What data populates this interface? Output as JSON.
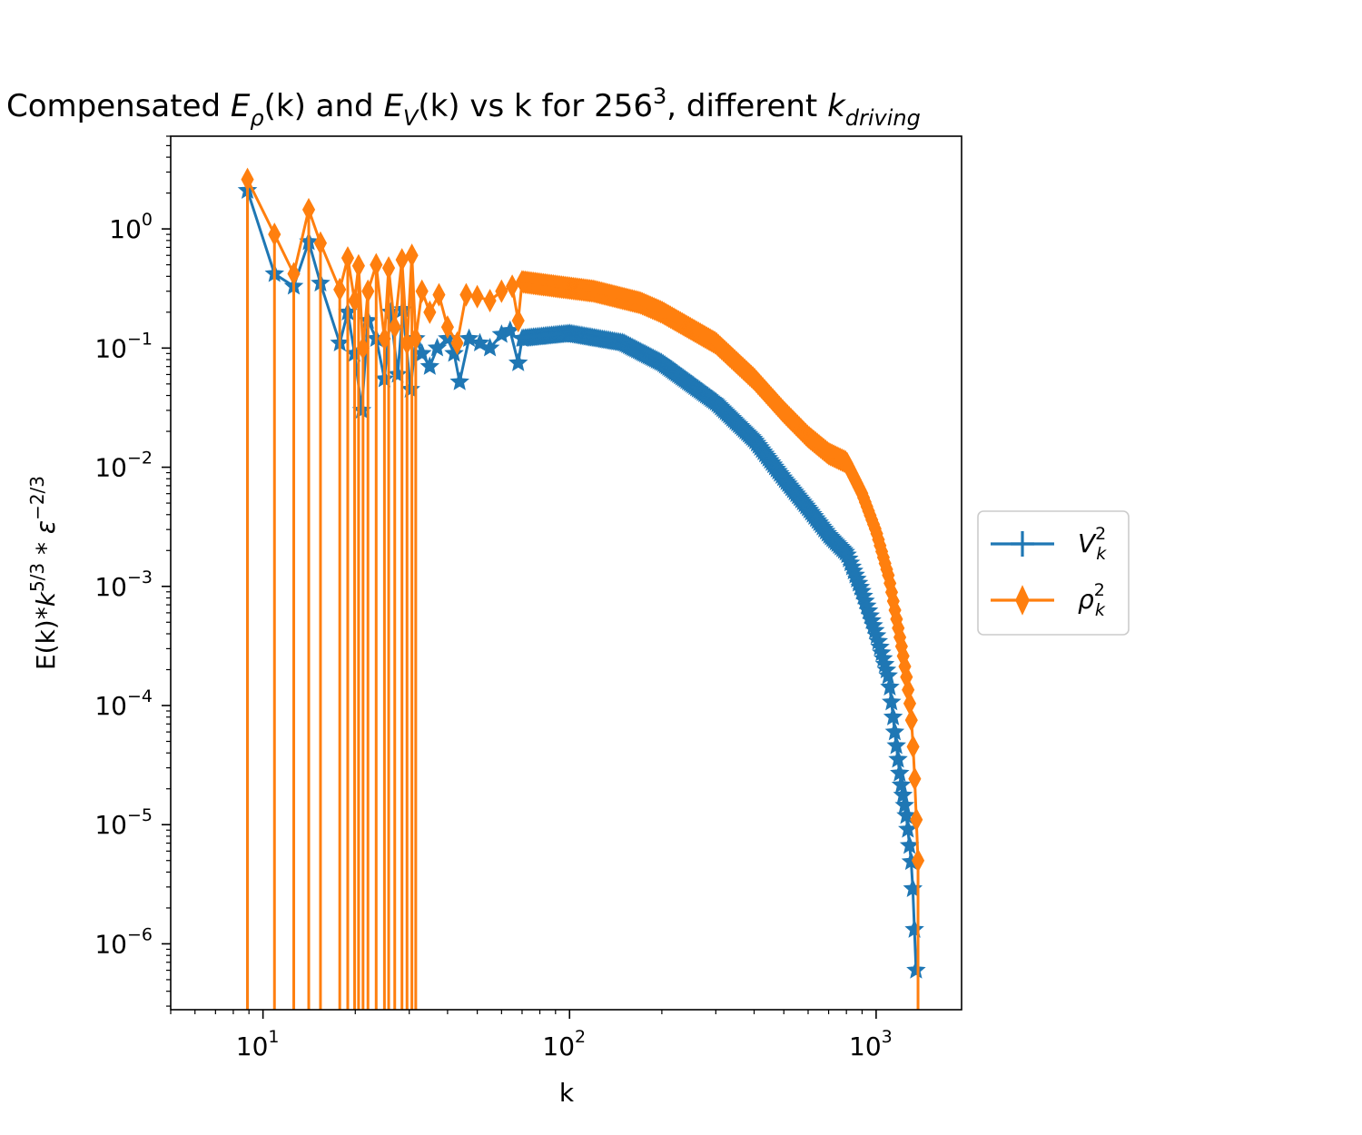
{
  "chart_data": {
    "type": "line",
    "title": {
      "prefix": "Compensated ",
      "e": "E",
      "rho": "ρ",
      "v": "V",
      "k_arg": "(k)",
      "k": "k",
      "and": " and ",
      "vs": " vs k for 256",
      "cube": "3",
      "different": ", different ",
      "driving": "driving"
    },
    "xlabel": "k",
    "ylabel": {
      "base": "E(k)*",
      "k": "k",
      "k_exp": "5/3",
      "star": " * ",
      "eps": "ε",
      "eps_exp": "−2/3"
    },
    "xscale": "log",
    "yscale": "log",
    "xlim": [
      5,
      1900
    ],
    "ylim": [
      2.8e-07,
      6
    ],
    "x_ticks": [
      {
        "base": "10",
        "exp": "1",
        "value": 10
      },
      {
        "base": "10",
        "exp": "2",
        "value": 100
      },
      {
        "base": "10",
        "exp": "3",
        "value": 1000
      }
    ],
    "y_ticks": [
      {
        "base": "10",
        "exp": "0",
        "value": 1
      },
      {
        "base": "10",
        "exp": "−1",
        "value": 0.1
      },
      {
        "base": "10",
        "exp": "−2",
        "value": 0.01
      },
      {
        "base": "10",
        "exp": "−3",
        "value": 0.001
      },
      {
        "base": "10",
        "exp": "−4",
        "value": 0.0001
      },
      {
        "base": "10",
        "exp": "−5",
        "value": 1e-05
      },
      {
        "base": "10",
        "exp": "−6",
        "value": 1e-06
      }
    ],
    "grid": false,
    "legend_position": "outside-right",
    "series": [
      {
        "name": "V",
        "name_sup": "2",
        "name_sub": "k",
        "color": "#1f77b4",
        "marker": "star",
        "sparse": [
          [
            8.9,
            2.1
          ],
          [
            10.9,
            0.42
          ],
          [
            12.6,
            0.33
          ],
          [
            14.1,
            0.78
          ],
          [
            15.4,
            0.35
          ],
          [
            17.8,
            0.11
          ],
          [
            18.9,
            0.2
          ],
          [
            19.9,
            0.09
          ],
          [
            21.0,
            0.03
          ],
          [
            22.0,
            0.17
          ],
          [
            23.4,
            0.12
          ],
          [
            24.9,
            0.055
          ],
          [
            26.1,
            0.2
          ],
          [
            27.5,
            0.06
          ],
          [
            28.6,
            0.21
          ],
          [
            30.3,
            0.045
          ],
          [
            31.5,
            0.12
          ],
          [
            33.0,
            0.09
          ],
          [
            35.0,
            0.07
          ],
          [
            37.0,
            0.1
          ],
          [
            40.0,
            0.12
          ],
          [
            42.0,
            0.09
          ],
          [
            43.8,
            0.052
          ],
          [
            47.0,
            0.12
          ],
          [
            51.0,
            0.11
          ],
          [
            55.0,
            0.1
          ],
          [
            60.0,
            0.13
          ],
          [
            64.0,
            0.14
          ],
          [
            68.0,
            0.075
          ]
        ],
        "anchors": [
          [
            70,
            0.12
          ],
          [
            100,
            0.132
          ],
          [
            150,
            0.11
          ],
          [
            200,
            0.075
          ],
          [
            300,
            0.035
          ],
          [
            400,
            0.017
          ],
          [
            500,
            0.008
          ],
          [
            600,
            0.0045
          ],
          [
            700,
            0.0027
          ],
          [
            800,
            0.0019
          ],
          [
            900,
            0.0009
          ],
          [
            1000,
            0.0004
          ],
          [
            1100,
            0.00017
          ],
          [
            1150,
            6e-05
          ],
          [
            1200,
            2.4e-05
          ],
          [
            1260,
            1.1e-05
          ],
          [
            1310,
            4.1e-06
          ],
          [
            1350,
            6e-07
          ]
        ]
      },
      {
        "name": "ρ",
        "name_sup": "2",
        "name_sub": "k",
        "color": "#ff7f0e",
        "marker": "thin_diamond",
        "sparse": [
          [
            8.9,
            2.6
          ],
          [
            10.9,
            0.9
          ],
          [
            12.6,
            0.42
          ],
          [
            14.1,
            1.45
          ],
          [
            15.4,
            0.76
          ],
          [
            17.8,
            0.31
          ],
          [
            18.9,
            0.57
          ],
          [
            19.9,
            0.25
          ],
          [
            20.5,
            0.49
          ],
          [
            21.2,
            0.1
          ],
          [
            22.0,
            0.3
          ],
          [
            23.4,
            0.5
          ],
          [
            24.9,
            0.12
          ],
          [
            25.7,
            0.47
          ],
          [
            26.9,
            0.15
          ],
          [
            28.4,
            0.55
          ],
          [
            29.5,
            0.11
          ],
          [
            30.6,
            0.6
          ],
          [
            31.5,
            0.12
          ],
          [
            33.0,
            0.3
          ],
          [
            35.0,
            0.2
          ],
          [
            37.5,
            0.28
          ],
          [
            40.0,
            0.15
          ],
          [
            43.0,
            0.11
          ],
          [
            46.0,
            0.28
          ],
          [
            50.0,
            0.27
          ],
          [
            55.0,
            0.25
          ],
          [
            60.0,
            0.3
          ],
          [
            65.0,
            0.33
          ],
          [
            68.0,
            0.17
          ]
        ],
        "anchors": [
          [
            70,
            0.36
          ],
          [
            90,
            0.33
          ],
          [
            120,
            0.3
          ],
          [
            170,
            0.24
          ],
          [
            200,
            0.2
          ],
          [
            300,
            0.11
          ],
          [
            400,
            0.055
          ],
          [
            500,
            0.029
          ],
          [
            600,
            0.018
          ],
          [
            700,
            0.013
          ],
          [
            800,
            0.011
          ],
          [
            900,
            0.006
          ],
          [
            1000,
            0.0029
          ],
          [
            1100,
            0.0012
          ],
          [
            1140,
            0.00073
          ],
          [
            1180,
            0.00045
          ],
          [
            1220,
            0.00028
          ],
          [
            1260,
            0.000165
          ],
          [
            1300,
            8.5e-05
          ],
          [
            1330,
            3.3e-05
          ],
          [
            1370,
            5e-06
          ]
        ]
      }
    ]
  }
}
